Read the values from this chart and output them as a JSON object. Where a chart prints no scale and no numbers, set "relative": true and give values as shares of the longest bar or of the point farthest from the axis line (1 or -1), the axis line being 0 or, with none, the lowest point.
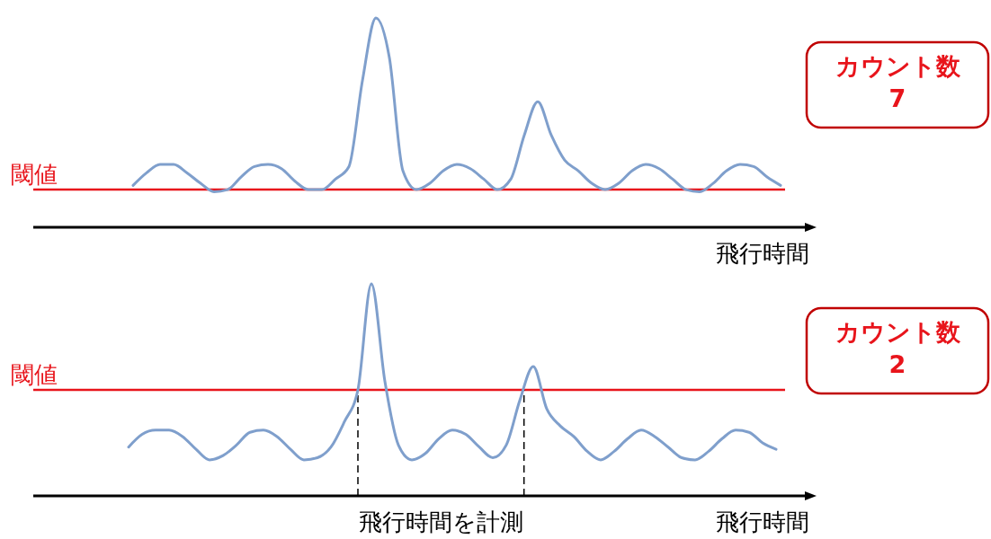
{
  "chart_data": [
    {
      "type": "line",
      "relative": true,
      "xlabel": "飛行時間",
      "color": "#7f9fcc",
      "categories": [
        null,
        null,
        null,
        null,
        null,
        null,
        null,
        null,
        null,
        null,
        null,
        null,
        null,
        null,
        null,
        null,
        null,
        null,
        null,
        null,
        null,
        null,
        null,
        null,
        null,
        null,
        null,
        null,
        null,
        null,
        null,
        null,
        null,
        null,
        null,
        null,
        null,
        null,
        null,
        null,
        null,
        null,
        null,
        null,
        null,
        null,
        null,
        null,
        null
      ],
      "values": [
        0.2,
        0.26,
        0.3,
        0.3,
        0.26,
        0.21,
        0.17,
        0.18,
        0.24,
        0.29,
        0.3,
        0.28,
        0.22,
        0.18,
        0.18,
        0.23,
        0.29,
        0.7,
        1,
        0.81,
        0.27,
        0.18,
        0.21,
        0.27,
        0.3,
        0.28,
        0.23,
        0.18,
        0.23,
        0.44,
        0.6,
        0.44,
        0.32,
        0.27,
        0.21,
        0.18,
        0.21,
        0.27,
        0.3,
        0.28,
        0.23,
        0.18,
        0.17,
        0.21,
        0.27,
        0.3,
        0.29,
        0.24,
        0.2
      ],
      "ref_lines": [
        {
          "axis": "y",
          "value": 0.18,
          "label": "閾値",
          "color": "#e8141b"
        }
      ],
      "annotations": [
        "カウント数\n7"
      ]
    },
    {
      "type": "line",
      "relative": true,
      "xlabel": "飛行時間",
      "color": "#7f9fcc",
      "categories": [
        null,
        null,
        null,
        null,
        null,
        null,
        null,
        null,
        null,
        null,
        null,
        null,
        null,
        null,
        null,
        null,
        null,
        null,
        null,
        null,
        null,
        null,
        null,
        null,
        null,
        null,
        null,
        null,
        null,
        null,
        null,
        null,
        null,
        null,
        null,
        null,
        null,
        null,
        null,
        null,
        null,
        null,
        null,
        null,
        null,
        null,
        null,
        null,
        null
      ],
      "values": [
        0.23,
        0.29,
        0.31,
        0.31,
        0.28,
        0.22,
        0.17,
        0.19,
        0.24,
        0.3,
        0.31,
        0.28,
        0.22,
        0.17,
        0.18,
        0.23,
        0.35,
        0.5,
        1,
        0.54,
        0.24,
        0.17,
        0.2,
        0.27,
        0.31,
        0.29,
        0.23,
        0.18,
        0.24,
        0.45,
        0.61,
        0.41,
        0.33,
        0.28,
        0.21,
        0.17,
        0.21,
        0.27,
        0.31,
        0.28,
        0.23,
        0.18,
        0.17,
        0.21,
        0.27,
        0.31,
        0.3,
        0.25,
        0.22
      ],
      "ref_lines": [
        {
          "axis": "y",
          "value": 0.5,
          "label": "閾値",
          "color": "#e8141b"
        }
      ],
      "annotations": [
        "カウント数\n2",
        "飛行時間を計測"
      ]
    }
  ]
}
